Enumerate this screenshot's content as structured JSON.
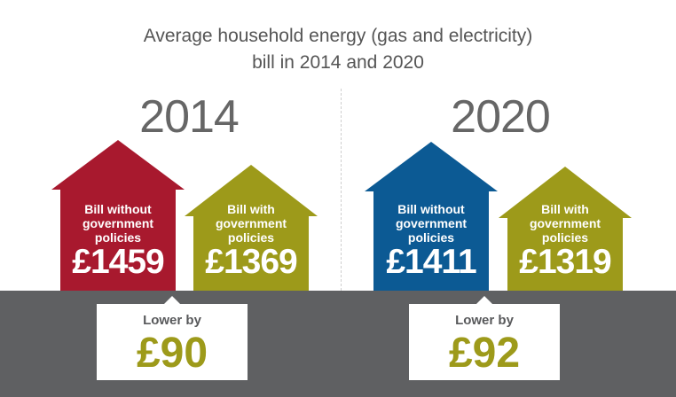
{
  "chart_data": {
    "type": "bar",
    "title_lines": [
      "Average household energy (gas and electricity)",
      "bill in 2014 and 2020"
    ],
    "panels": [
      {
        "year": "2014",
        "bars": [
          {
            "label_lines": [
              "Bill without",
              "government",
              "policies"
            ],
            "amount": "£1459",
            "value": 1459,
            "color": "#a8192e"
          },
          {
            "label_lines": [
              "Bill with",
              "government",
              "policies"
            ],
            "amount": "£1369",
            "value": 1369,
            "color": "#9d9a1a"
          }
        ],
        "difference_label": "Lower by",
        "difference": "£90"
      },
      {
        "year": "2020",
        "bars": [
          {
            "label_lines": [
              "Bill without",
              "government",
              "policies"
            ],
            "amount": "£1411",
            "value": 1411,
            "color": "#0c5a94"
          },
          {
            "label_lines": [
              "Bill with",
              "government",
              "policies"
            ],
            "amount": "£1319",
            "value": 1319,
            "color": "#9d9a1a"
          }
        ],
        "difference_label": "Lower by",
        "difference": "£92"
      }
    ]
  }
}
